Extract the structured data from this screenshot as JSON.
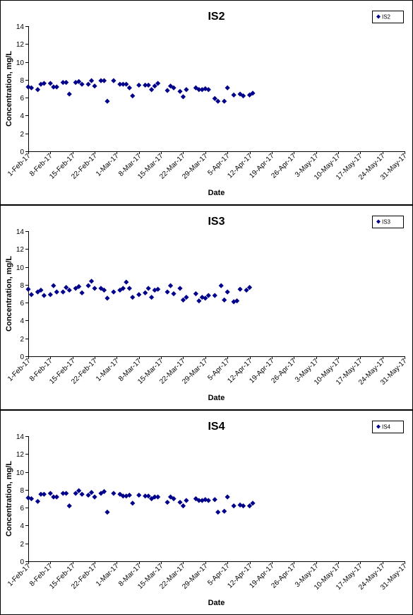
{
  "chart_data": [
    {
      "type": "scatter",
      "title": "IS2",
      "xlabel": "Date",
      "ylabel": "Concentration, mg/L",
      "ylim": [
        0,
        14
      ],
      "yticks": [
        "0",
        "2",
        "4",
        "6",
        "8",
        "10",
        "12",
        "14"
      ],
      "xlim": [
        "1-Feb-17",
        "31-May-17"
      ],
      "xticks": [
        "1-Feb-17",
        "8-Feb-17",
        "15-Feb-17",
        "22-Feb-17",
        "1-Mar-17",
        "8-Mar-17",
        "15-Mar-17",
        "22-Mar-17",
        "29-Mar-17",
        "5-Apr-17",
        "12-Apr-17",
        "19-Apr-17",
        "26-Apr-17",
        "3-May-17",
        "10-May-17",
        "17-May-17",
        "24-May-17",
        "31-May-17"
      ],
      "grid": false,
      "legend": "top-right",
      "series": [
        {
          "name": "IS2",
          "color": "#00008B",
          "points": [
            {
              "x": "1-Feb-17",
              "y": 7.2
            },
            {
              "x": "2-Feb-17",
              "y": 7.1
            },
            {
              "x": "4-Feb-17",
              "y": 6.9
            },
            {
              "x": "5-Feb-17",
              "y": 7.5
            },
            {
              "x": "6-Feb-17",
              "y": 7.6
            },
            {
              "x": "8-Feb-17",
              "y": 7.6
            },
            {
              "x": "9-Feb-17",
              "y": 7.2
            },
            {
              "x": "10-Feb-17",
              "y": 7.2
            },
            {
              "x": "12-Feb-17",
              "y": 7.7
            },
            {
              "x": "13-Feb-17",
              "y": 7.7
            },
            {
              "x": "14-Feb-17",
              "y": 6.4
            },
            {
              "x": "16-Feb-17",
              "y": 7.7
            },
            {
              "x": "17-Feb-17",
              "y": 7.8
            },
            {
              "x": "18-Feb-17",
              "y": 7.5
            },
            {
              "x": "20-Feb-17",
              "y": 7.5
            },
            {
              "x": "21-Feb-17",
              "y": 7.9
            },
            {
              "x": "22-Feb-17",
              "y": 7.3
            },
            {
              "x": "24-Feb-17",
              "y": 7.9
            },
            {
              "x": "25-Feb-17",
              "y": 7.9
            },
            {
              "x": "26-Feb-17",
              "y": 5.6
            },
            {
              "x": "28-Feb-17",
              "y": 7.9
            },
            {
              "x": "2-Mar-17",
              "y": 7.5
            },
            {
              "x": "3-Mar-17",
              "y": 7.5
            },
            {
              "x": "4-Mar-17",
              "y": 7.5
            },
            {
              "x": "5-Mar-17",
              "y": 7.1
            },
            {
              "x": "6-Mar-17",
              "y": 6.2
            },
            {
              "x": "8-Mar-17",
              "y": 7.4
            },
            {
              "x": "10-Mar-17",
              "y": 7.4
            },
            {
              "x": "11-Mar-17",
              "y": 7.4
            },
            {
              "x": "12-Mar-17",
              "y": 6.9
            },
            {
              "x": "13-Mar-17",
              "y": 7.3
            },
            {
              "x": "14-Mar-17",
              "y": 7.6
            },
            {
              "x": "17-Mar-17",
              "y": 6.8
            },
            {
              "x": "18-Mar-17",
              "y": 7.3
            },
            {
              "x": "19-Mar-17",
              "y": 7.1
            },
            {
              "x": "21-Mar-17",
              "y": 6.7
            },
            {
              "x": "22-Mar-17",
              "y": 6.1
            },
            {
              "x": "23-Mar-17",
              "y": 6.9
            },
            {
              "x": "26-Mar-17",
              "y": 7.1
            },
            {
              "x": "27-Mar-17",
              "y": 6.9
            },
            {
              "x": "28-Mar-17",
              "y": 6.9
            },
            {
              "x": "29-Mar-17",
              "y": 7.0
            },
            {
              "x": "30-Mar-17",
              "y": 6.9
            },
            {
              "x": "1-Apr-17",
              "y": 5.9
            },
            {
              "x": "2-Apr-17",
              "y": 5.6
            },
            {
              "x": "4-Apr-17",
              "y": 5.6
            },
            {
              "x": "5-Apr-17",
              "y": 7.1
            },
            {
              "x": "7-Apr-17",
              "y": 6.3
            },
            {
              "x": "9-Apr-17",
              "y": 6.4
            },
            {
              "x": "10-Apr-17",
              "y": 6.2
            },
            {
              "x": "12-Apr-17",
              "y": 6.3
            },
            {
              "x": "13-Apr-17",
              "y": 6.5
            }
          ]
        }
      ]
    },
    {
      "type": "scatter",
      "title": "IS3",
      "xlabel": "Date",
      "ylabel": "Concentration, mg/L",
      "ylim": [
        0,
        14
      ],
      "yticks": [
        "0",
        "2",
        "4",
        "6",
        "8",
        "10",
        "12",
        "14"
      ],
      "xlim": [
        "1-Feb-17",
        "31-May-17"
      ],
      "xticks": [
        "1-Feb-17",
        "8-Feb-17",
        "15-Feb-17",
        "22-Feb-17",
        "1-Mar-17",
        "8-Mar-17",
        "15-Mar-17",
        "22-Mar-17",
        "29-Mar-17",
        "5-Apr-17",
        "12-Apr-17",
        "19-Apr-17",
        "26-Apr-17",
        "3-May-17",
        "10-May-17",
        "17-May-17",
        "24-May-17",
        "31-May-17"
      ],
      "grid": false,
      "legend": "top-right",
      "series": [
        {
          "name": "IS3",
          "color": "#00008B",
          "points": [
            {
              "x": "1-Feb-17",
              "y": 7.5
            },
            {
              "x": "2-Feb-17",
              "y": 6.9
            },
            {
              "x": "4-Feb-17",
              "y": 7.2
            },
            {
              "x": "5-Feb-17",
              "y": 7.4
            },
            {
              "x": "6-Feb-17",
              "y": 6.8
            },
            {
              "x": "8-Feb-17",
              "y": 6.9
            },
            {
              "x": "9-Feb-17",
              "y": 7.9
            },
            {
              "x": "10-Feb-17",
              "y": 7.2
            },
            {
              "x": "12-Feb-17",
              "y": 7.2
            },
            {
              "x": "13-Feb-17",
              "y": 7.7
            },
            {
              "x": "14-Feb-17",
              "y": 7.4
            },
            {
              "x": "16-Feb-17",
              "y": 7.6
            },
            {
              "x": "17-Feb-17",
              "y": 7.8
            },
            {
              "x": "18-Feb-17",
              "y": 7.1
            },
            {
              "x": "20-Feb-17",
              "y": 7.9
            },
            {
              "x": "21-Feb-17",
              "y": 8.4
            },
            {
              "x": "22-Feb-17",
              "y": 7.6
            },
            {
              "x": "24-Feb-17",
              "y": 7.6
            },
            {
              "x": "25-Feb-17",
              "y": 7.4
            },
            {
              "x": "26-Feb-17",
              "y": 6.5
            },
            {
              "x": "28-Feb-17",
              "y": 7.2
            },
            {
              "x": "2-Mar-17",
              "y": 7.4
            },
            {
              "x": "3-Mar-17",
              "y": 7.6
            },
            {
              "x": "4-Mar-17",
              "y": 8.3
            },
            {
              "x": "5-Mar-17",
              "y": 7.6
            },
            {
              "x": "6-Mar-17",
              "y": 6.6
            },
            {
              "x": "8-Mar-17",
              "y": 6.9
            },
            {
              "x": "10-Mar-17",
              "y": 7.1
            },
            {
              "x": "11-Mar-17",
              "y": 7.6
            },
            {
              "x": "12-Mar-17",
              "y": 6.6
            },
            {
              "x": "13-Mar-17",
              "y": 7.4
            },
            {
              "x": "14-Mar-17",
              "y": 7.5
            },
            {
              "x": "17-Mar-17",
              "y": 7.2
            },
            {
              "x": "18-Mar-17",
              "y": 7.9
            },
            {
              "x": "19-Mar-17",
              "y": 7.0
            },
            {
              "x": "21-Mar-17",
              "y": 7.6
            },
            {
              "x": "22-Mar-17",
              "y": 6.3
            },
            {
              "x": "23-Mar-17",
              "y": 6.6
            },
            {
              "x": "26-Mar-17",
              "y": 7.0
            },
            {
              "x": "27-Mar-17",
              "y": 6.2
            },
            {
              "x": "28-Mar-17",
              "y": 6.6
            },
            {
              "x": "29-Mar-17",
              "y": 6.5
            },
            {
              "x": "30-Mar-17",
              "y": 6.8
            },
            {
              "x": "1-Apr-17",
              "y": 6.8
            },
            {
              "x": "3-Apr-17",
              "y": 7.9
            },
            {
              "x": "4-Apr-17",
              "y": 6.3
            },
            {
              "x": "5-Apr-17",
              "y": 7.2
            },
            {
              "x": "7-Apr-17",
              "y": 6.1
            },
            {
              "x": "8-Apr-17",
              "y": 6.2
            },
            {
              "x": "9-Apr-17",
              "y": 7.5
            },
            {
              "x": "11-Apr-17",
              "y": 7.4
            },
            {
              "x": "12-Apr-17",
              "y": 7.7
            }
          ]
        }
      ]
    },
    {
      "type": "scatter",
      "title": "IS4",
      "xlabel": "Date",
      "ylabel": "Concentration, mg/L",
      "ylim": [
        0,
        14
      ],
      "yticks": [
        "0",
        "2",
        "4",
        "6",
        "8",
        "10",
        "12",
        "14"
      ],
      "xlim": [
        "1-Feb-17",
        "31-May-17"
      ],
      "xticks": [
        "1-Feb-17",
        "8-Feb-17",
        "15-Feb-17",
        "22-Feb-17",
        "1-Mar-17",
        "8-Mar-17",
        "15-Mar-17",
        "22-Mar-17",
        "29-Mar-17",
        "5-Apr-17",
        "12-Apr-17",
        "19-Apr-17",
        "26-Apr-17",
        "3-May-17",
        "10-May-17",
        "17-May-17",
        "24-May-17",
        "31-May-17"
      ],
      "grid": false,
      "legend": "top-right",
      "series": [
        {
          "name": "IS4",
          "color": "#00008B",
          "points": [
            {
              "x": "1-Feb-17",
              "y": 7.1
            },
            {
              "x": "2-Feb-17",
              "y": 7.0
            },
            {
              "x": "4-Feb-17",
              "y": 6.7
            },
            {
              "x": "5-Feb-17",
              "y": 7.5
            },
            {
              "x": "6-Feb-17",
              "y": 7.5
            },
            {
              "x": "8-Feb-17",
              "y": 7.6
            },
            {
              "x": "9-Feb-17",
              "y": 7.2
            },
            {
              "x": "10-Feb-17",
              "y": 7.2
            },
            {
              "x": "12-Feb-17",
              "y": 7.6
            },
            {
              "x": "13-Feb-17",
              "y": 7.6
            },
            {
              "x": "14-Feb-17",
              "y": 6.2
            },
            {
              "x": "16-Feb-17",
              "y": 7.6
            },
            {
              "x": "17-Feb-17",
              "y": 7.9
            },
            {
              "x": "18-Feb-17",
              "y": 7.5
            },
            {
              "x": "20-Feb-17",
              "y": 7.4
            },
            {
              "x": "21-Feb-17",
              "y": 7.7
            },
            {
              "x": "22-Feb-17",
              "y": 7.2
            },
            {
              "x": "24-Feb-17",
              "y": 7.6
            },
            {
              "x": "25-Feb-17",
              "y": 7.8
            },
            {
              "x": "26-Feb-17",
              "y": 5.5
            },
            {
              "x": "28-Feb-17",
              "y": 7.6
            },
            {
              "x": "2-Mar-17",
              "y": 7.5
            },
            {
              "x": "3-Mar-17",
              "y": 7.3
            },
            {
              "x": "4-Mar-17",
              "y": 7.3
            },
            {
              "x": "5-Mar-17",
              "y": 7.4
            },
            {
              "x": "6-Mar-17",
              "y": 6.5
            },
            {
              "x": "8-Mar-17",
              "y": 7.4
            },
            {
              "x": "10-Mar-17",
              "y": 7.3
            },
            {
              "x": "11-Mar-17",
              "y": 7.3
            },
            {
              "x": "12-Mar-17",
              "y": 7.0
            },
            {
              "x": "13-Mar-17",
              "y": 7.2
            },
            {
              "x": "14-Mar-17",
              "y": 7.2
            },
            {
              "x": "17-Mar-17",
              "y": 6.6
            },
            {
              "x": "18-Mar-17",
              "y": 7.2
            },
            {
              "x": "19-Mar-17",
              "y": 7.0
            },
            {
              "x": "21-Mar-17",
              "y": 6.6
            },
            {
              "x": "22-Mar-17",
              "y": 6.2
            },
            {
              "x": "23-Mar-17",
              "y": 6.8
            },
            {
              "x": "26-Mar-17",
              "y": 7.0
            },
            {
              "x": "27-Mar-17",
              "y": 6.8
            },
            {
              "x": "28-Mar-17",
              "y": 6.8
            },
            {
              "x": "29-Mar-17",
              "y": 6.9
            },
            {
              "x": "30-Mar-17",
              "y": 6.8
            },
            {
              "x": "1-Apr-17",
              "y": 6.9
            },
            {
              "x": "2-Apr-17",
              "y": 5.5
            },
            {
              "x": "4-Apr-17",
              "y": 5.6
            },
            {
              "x": "5-Apr-17",
              "y": 7.2
            },
            {
              "x": "7-Apr-17",
              "y": 6.2
            },
            {
              "x": "9-Apr-17",
              "y": 6.3
            },
            {
              "x": "10-Apr-17",
              "y": 6.2
            },
            {
              "x": "12-Apr-17",
              "y": 6.2
            },
            {
              "x": "13-Apr-17",
              "y": 6.5
            }
          ]
        }
      ]
    }
  ]
}
